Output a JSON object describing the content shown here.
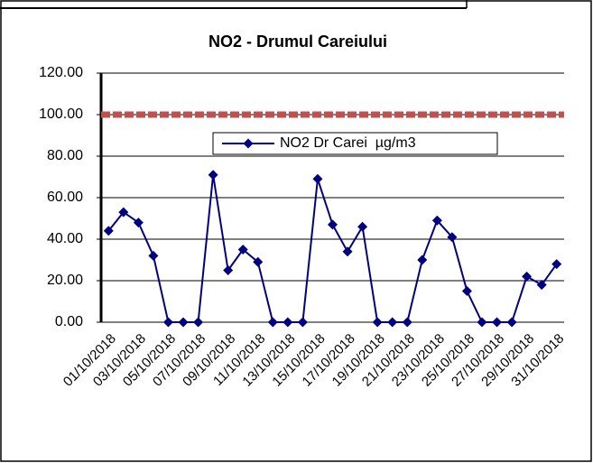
{
  "chart_data": {
    "type": "line",
    "title": "NO2 - Drumul Careiului",
    "categories": [
      "01/10/2018",
      null,
      "03/10/2018",
      null,
      "05/10/2018",
      null,
      "07/10/2018",
      null,
      "09/10/2018",
      null,
      "11/10/2018",
      null,
      "13/10/2018",
      null,
      "15/10/2018",
      null,
      "17/10/2018",
      null,
      "19/10/2018",
      null,
      "21/10/2018",
      null,
      "23/10/2018",
      null,
      "25/10/2018",
      null,
      "27/10/2018",
      null,
      "29/10/2018",
      null,
      "31/10/2018"
    ],
    "series": [
      {
        "name": "NO2 Dr Carei  µg/m3",
        "color": "#000080",
        "values": [
          44,
          53,
          48,
          32,
          0,
          0,
          0,
          71,
          25,
          35,
          29,
          0,
          0,
          0,
          69,
          47,
          34,
          46,
          0,
          0,
          0,
          30,
          49,
          41,
          15,
          0,
          0,
          0,
          22,
          18,
          28
        ]
      }
    ],
    "reference_lines": [
      {
        "value": 100,
        "color": "#c0504d"
      }
    ],
    "ylim": [
      0,
      120
    ],
    "yticks": [
      {
        "value": 0,
        "label": "0.00"
      },
      {
        "value": 20,
        "label": "20.00"
      },
      {
        "value": 40,
        "label": "40.00"
      },
      {
        "value": 60,
        "label": "60.00"
      },
      {
        "value": 80,
        "label": "80.00"
      },
      {
        "value": 100,
        "label": "100.00"
      },
      {
        "value": 120,
        "label": "120.00"
      }
    ],
    "grid": true
  }
}
